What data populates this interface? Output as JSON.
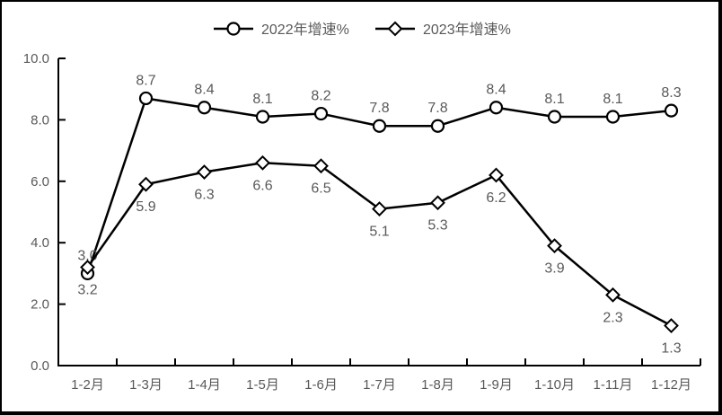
{
  "chart_data": {
    "type": "line",
    "title": "",
    "categories": [
      "1-2月",
      "1-3月",
      "1-4月",
      "1-5月",
      "1-6月",
      "1-7月",
      "1-8月",
      "1-9月",
      "1-10月",
      "1-11月",
      "1-12月"
    ],
    "series": [
      {
        "name": "2022年增速%",
        "marker": "circle",
        "label_position": "above",
        "values": [
          3.0,
          8.7,
          8.4,
          8.1,
          8.2,
          7.8,
          7.8,
          8.4,
          8.1,
          8.1,
          8.3
        ]
      },
      {
        "name": "2023年增速%",
        "marker": "diamond",
        "label_position": "below",
        "values": [
          3.2,
          5.9,
          6.3,
          6.6,
          6.5,
          5.1,
          5.3,
          6.2,
          3.9,
          2.3,
          1.3
        ]
      }
    ],
    "y_axis": {
      "ticks": [
        "0.0",
        "2.0",
        "4.0",
        "6.0",
        "8.0",
        "10.0"
      ],
      "min": 0,
      "max": 10
    },
    "x_axis": {
      "tick_marks": "inside-at-boundaries"
    },
    "legend_position": "top-center",
    "gridlines": false,
    "colors": {
      "line": "#000000",
      "marker_fill": "#ffffff",
      "axis": "#000000",
      "text": "#595959",
      "background": "#ffffff",
      "frame_border": "#000000"
    }
  }
}
